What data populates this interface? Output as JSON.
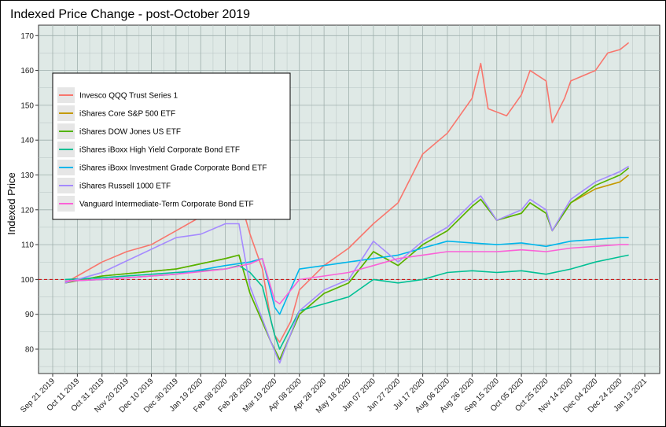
{
  "chart_data": {
    "type": "line",
    "title": "Indexed Price Change - post-October 2019",
    "xlabel": "",
    "ylabel": "Indexed Price",
    "ylim": [
      73,
      173
    ],
    "y_ticks": [
      80,
      90,
      100,
      110,
      120,
      130,
      140,
      150,
      160,
      170
    ],
    "x_ticks": [
      "Sep 21 2019",
      "Oct 11 2019",
      "Oct 31 2019",
      "Nov 20 2019",
      "Dec 10 2019",
      "Dec 30 2019",
      "Jan 19 2020",
      "Feb 08 2020",
      "Feb 28 2020",
      "Mar 19 2020",
      "Apr 08 2020",
      "Apr 28 2020",
      "May 18 2020",
      "Jun 07 2020",
      "Jun 27 2020",
      "Jul 17 2020",
      "Aug 06 2020",
      "Aug 26 2020",
      "Sep 15 2020",
      "Oct 05 2020",
      "Oct 25 2020",
      "Nov 14 2020",
      "Dec 04 2020",
      "Dec 24 2020",
      "Jan 13 2021"
    ],
    "reference_line": 100,
    "grid": true,
    "legend_position": "top-left",
    "series": [
      {
        "name": "Invesco QQQ Trust Series 1",
        "color": "#F8766D",
        "points": [
          [
            "Oct 01 2019",
            99
          ],
          [
            "Oct 11 2019",
            101
          ],
          [
            "Oct 31 2019",
            105
          ],
          [
            "Nov 20 2019",
            108
          ],
          [
            "Dec 10 2019",
            110
          ],
          [
            "Dec 30 2019",
            114
          ],
          [
            "Jan 19 2020",
            118
          ],
          [
            "Feb 08 2020",
            122
          ],
          [
            "Feb 19 2020",
            124
          ],
          [
            "Feb 28 2020",
            113
          ],
          [
            "Mar 09 2020",
            103
          ],
          [
            "Mar 16 2020",
            88
          ],
          [
            "Mar 19 2020",
            84
          ],
          [
            "Mar 23 2020",
            82
          ],
          [
            "Apr 01 2020",
            88
          ],
          [
            "Apr 08 2020",
            97
          ],
          [
            "Apr 28 2020",
            104
          ],
          [
            "May 18 2020",
            109
          ],
          [
            "Jun 07 2020",
            116
          ],
          [
            "Jun 27 2020",
            122
          ],
          [
            "Jul 17 2020",
            136
          ],
          [
            "Aug 06 2020",
            142
          ],
          [
            "Aug 26 2020",
            152
          ],
          [
            "Sep 02 2020",
            162
          ],
          [
            "Sep 08 2020",
            149
          ],
          [
            "Sep 23 2020",
            147
          ],
          [
            "Oct 05 2020",
            153
          ],
          [
            "Oct 12 2020",
            160
          ],
          [
            "Oct 25 2020",
            157
          ],
          [
            "Oct 30 2020",
            145
          ],
          [
            "Nov 09 2020",
            152
          ],
          [
            "Nov 14 2020",
            157
          ],
          [
            "Dec 04 2020",
            160
          ],
          [
            "Dec 14 2020",
            165
          ],
          [
            "Dec 24 2020",
            166
          ],
          [
            "Dec 31 2020",
            168
          ]
        ]
      },
      {
        "name": "iShares Core S&P 500 ETF",
        "color": "#C49A00",
        "points": [
          [
            "Oct 01 2019",
            99
          ],
          [
            "Oct 31 2019",
            101
          ],
          [
            "Dec 30 2019",
            103
          ],
          [
            "Feb 08 2020",
            106
          ],
          [
            "Feb 19 2020",
            107
          ],
          [
            "Feb 28 2020",
            96
          ],
          [
            "Mar 16 2020",
            82
          ],
          [
            "Mar 23 2020",
            77
          ],
          [
            "Apr 08 2020",
            90
          ],
          [
            "Apr 28 2020",
            96
          ],
          [
            "May 18 2020",
            99
          ],
          [
            "Jun 07 2020",
            108
          ],
          [
            "Jun 27 2020",
            104
          ],
          [
            "Jul 17 2020",
            110
          ],
          [
            "Aug 06 2020",
            114
          ],
          [
            "Aug 26 2020",
            121
          ],
          [
            "Sep 02 2020",
            123
          ],
          [
            "Sep 15 2020",
            117
          ],
          [
            "Oct 05 2020",
            119
          ],
          [
            "Oct 12 2020",
            122
          ],
          [
            "Oct 25 2020",
            119
          ],
          [
            "Oct 30 2020",
            114
          ],
          [
            "Nov 14 2020",
            122
          ],
          [
            "Dec 04 2020",
            126
          ],
          [
            "Dec 24 2020",
            128
          ],
          [
            "Dec 31 2020",
            130
          ]
        ]
      },
      {
        "name": "iShares DOW Jones US ETF",
        "color": "#53B400",
        "points": [
          [
            "Oct 01 2019",
            99
          ],
          [
            "Oct 31 2019",
            101
          ],
          [
            "Dec 30 2019",
            103
          ],
          [
            "Feb 08 2020",
            106
          ],
          [
            "Feb 19 2020",
            107
          ],
          [
            "Feb 28 2020",
            96
          ],
          [
            "Mar 16 2020",
            82
          ],
          [
            "Mar 23 2020",
            77
          ],
          [
            "Apr 08 2020",
            90
          ],
          [
            "Apr 28 2020",
            96
          ],
          [
            "May 18 2020",
            99
          ],
          [
            "Jun 07 2020",
            108
          ],
          [
            "Jun 27 2020",
            104
          ],
          [
            "Jul 17 2020",
            110
          ],
          [
            "Aug 06 2020",
            114
          ],
          [
            "Aug 26 2020",
            121
          ],
          [
            "Sep 02 2020",
            123
          ],
          [
            "Sep 15 2020",
            117
          ],
          [
            "Oct 05 2020",
            119
          ],
          [
            "Oct 12 2020",
            122
          ],
          [
            "Oct 25 2020",
            119
          ],
          [
            "Oct 30 2020",
            114
          ],
          [
            "Nov 14 2020",
            122
          ],
          [
            "Dec 04 2020",
            127
          ],
          [
            "Dec 24 2020",
            130
          ],
          [
            "Dec 31 2020",
            132
          ]
        ]
      },
      {
        "name": "iShares iBoxx High Yield Corporate Bond ETF",
        "color": "#00C094",
        "points": [
          [
            "Oct 01 2019",
            100
          ],
          [
            "Oct 31 2019",
            100.5
          ],
          [
            "Dec 30 2019",
            102
          ],
          [
            "Feb 08 2020",
            103
          ],
          [
            "Feb 19 2020",
            104
          ],
          [
            "Feb 28 2020",
            102
          ],
          [
            "Mar 09 2020",
            98
          ],
          [
            "Mar 19 2020",
            84
          ],
          [
            "Mar 23 2020",
            80
          ],
          [
            "Apr 08 2020",
            91
          ],
          [
            "Apr 28 2020",
            93
          ],
          [
            "May 18 2020",
            95
          ],
          [
            "Jun 07 2020",
            100
          ],
          [
            "Jun 27 2020",
            99
          ],
          [
            "Jul 17 2020",
            100
          ],
          [
            "Aug 06 2020",
            102
          ],
          [
            "Aug 26 2020",
            102.5
          ],
          [
            "Sep 15 2020",
            102
          ],
          [
            "Oct 05 2020",
            102.5
          ],
          [
            "Oct 25 2020",
            101.5
          ],
          [
            "Nov 14 2020",
            103
          ],
          [
            "Dec 04 2020",
            105
          ],
          [
            "Dec 24 2020",
            106.5
          ],
          [
            "Dec 31 2020",
            107
          ]
        ]
      },
      {
        "name": "iShares iBoxx Investment Grade Corporate Bond ETF",
        "color": "#00B6EB",
        "points": [
          [
            "Oct 01 2019",
            99.5
          ],
          [
            "Oct 31 2019",
            100
          ],
          [
            "Dec 30 2019",
            101.5
          ],
          [
            "Feb 08 2020",
            104
          ],
          [
            "Feb 28 2020",
            105
          ],
          [
            "Mar 09 2020",
            106
          ],
          [
            "Mar 19 2020",
            92
          ],
          [
            "Mar 23 2020",
            90
          ],
          [
            "Apr 08 2020",
            103
          ],
          [
            "Apr 28 2020",
            104
          ],
          [
            "May 18 2020",
            105
          ],
          [
            "Jun 07 2020",
            106
          ],
          [
            "Jun 27 2020",
            107
          ],
          [
            "Jul 17 2020",
            109
          ],
          [
            "Aug 06 2020",
            111
          ],
          [
            "Aug 26 2020",
            110.5
          ],
          [
            "Sep 15 2020",
            110
          ],
          [
            "Oct 05 2020",
            110.5
          ],
          [
            "Oct 25 2020",
            109.5
          ],
          [
            "Nov 14 2020",
            111
          ],
          [
            "Dec 04 2020",
            111.5
          ],
          [
            "Dec 24 2020",
            112
          ],
          [
            "Dec 31 2020",
            112
          ]
        ]
      },
      {
        "name": "iShares Russell 1000 ETF",
        "color": "#A58AFF",
        "points": [
          [
            "Oct 01 2019",
            99
          ],
          [
            "Oct 31 2019",
            102
          ],
          [
            "Dec 30 2019",
            112
          ],
          [
            "Jan 19 2020",
            113
          ],
          [
            "Feb 08 2020",
            116
          ],
          [
            "Feb 19 2020",
            116
          ],
          [
            "Feb 28 2020",
            98
          ],
          [
            "Mar 16 2020",
            82
          ],
          [
            "Mar 23 2020",
            76
          ],
          [
            "Apr 08 2020",
            91
          ],
          [
            "Apr 28 2020",
            97
          ],
          [
            "May 18 2020",
            100
          ],
          [
            "Jun 07 2020",
            111
          ],
          [
            "Jun 27 2020",
            105
          ],
          [
            "Jul 17 2020",
            111
          ],
          [
            "Aug 06 2020",
            115
          ],
          [
            "Aug 26 2020",
            122
          ],
          [
            "Sep 02 2020",
            124
          ],
          [
            "Sep 15 2020",
            117
          ],
          [
            "Oct 05 2020",
            120
          ],
          [
            "Oct 12 2020",
            123
          ],
          [
            "Oct 25 2020",
            120
          ],
          [
            "Oct 30 2020",
            114
          ],
          [
            "Nov 14 2020",
            123
          ],
          [
            "Dec 04 2020",
            128
          ],
          [
            "Dec 24 2020",
            131
          ],
          [
            "Dec 31 2020",
            132.5
          ]
        ]
      },
      {
        "name": "Vanguard Intermediate-Term Corporate Bond ETF",
        "color": "#FB61D7",
        "points": [
          [
            "Oct 01 2019",
            99.5
          ],
          [
            "Oct 31 2019",
            100
          ],
          [
            "Dec 30 2019",
            101.5
          ],
          [
            "Feb 08 2020",
            103
          ],
          [
            "Feb 28 2020",
            104.5
          ],
          [
            "Mar 09 2020",
            106
          ],
          [
            "Mar 19 2020",
            94
          ],
          [
            "Mar 23 2020",
            93
          ],
          [
            "Apr 08 2020",
            100
          ],
          [
            "Apr 28 2020",
            101
          ],
          [
            "May 18 2020",
            102
          ],
          [
            "Jun 07 2020",
            104
          ],
          [
            "Jun 27 2020",
            106
          ],
          [
            "Jul 17 2020",
            107
          ],
          [
            "Aug 06 2020",
            108
          ],
          [
            "Aug 26 2020",
            108
          ],
          [
            "Sep 15 2020",
            108
          ],
          [
            "Oct 05 2020",
            108.5
          ],
          [
            "Oct 25 2020",
            108
          ],
          [
            "Nov 14 2020",
            109
          ],
          [
            "Dec 04 2020",
            109.5
          ],
          [
            "Dec 24 2020",
            110
          ],
          [
            "Dec 31 2020",
            110
          ]
        ]
      }
    ]
  }
}
